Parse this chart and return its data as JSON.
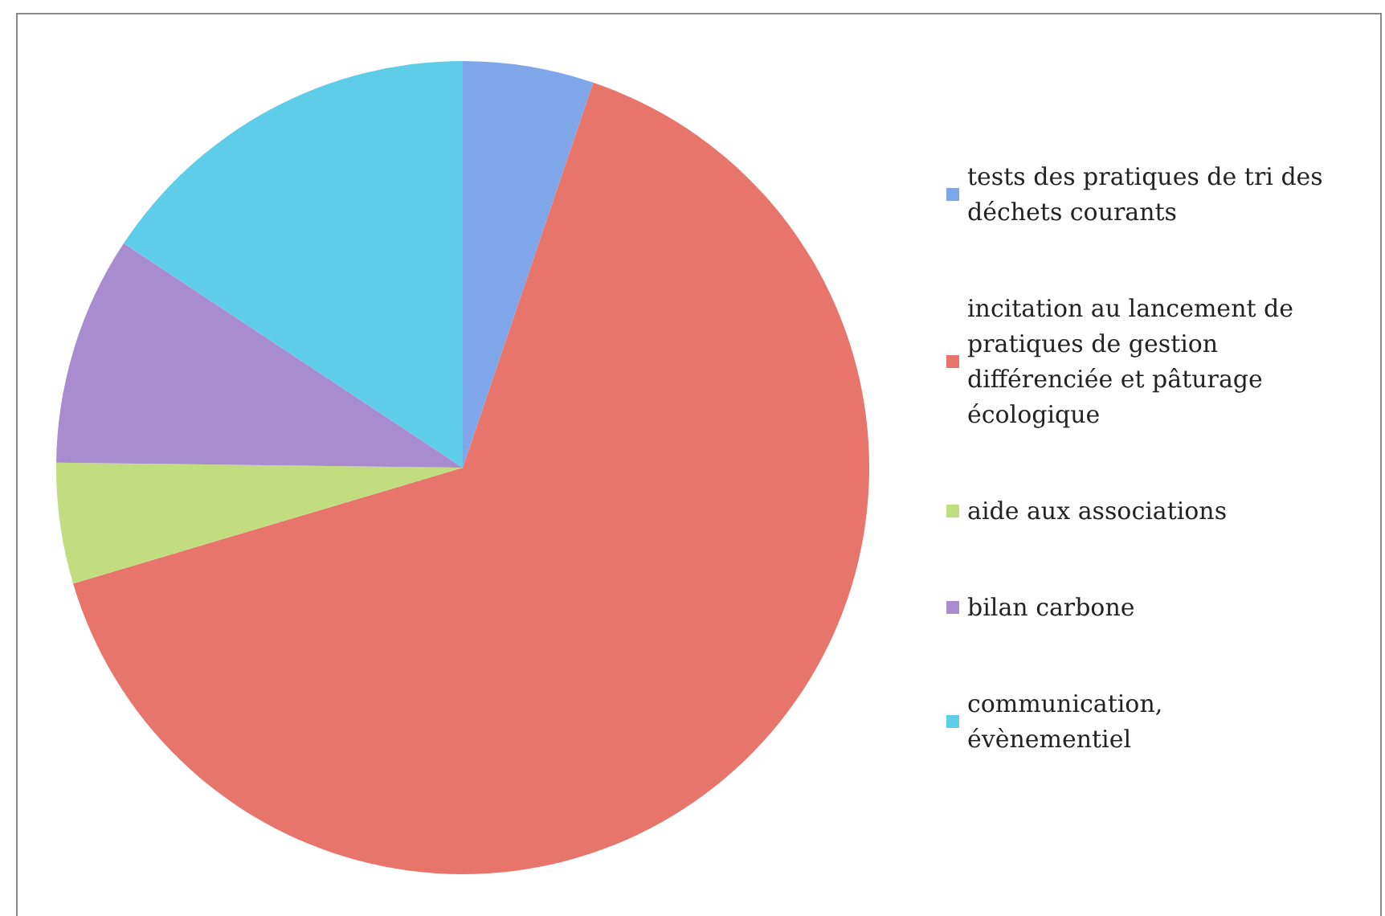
{
  "chart_data": {
    "type": "pie",
    "categories": [
      "tests des pratiques de tri des déchets courants",
      "incitation au lancement de pratiques de gestion différenciée et pâturage écologique",
      "aide aux associations",
      "bilan carbone",
      "communication, évènementiel"
    ],
    "values": [
      5.2,
      65.2,
      4.8,
      9.1,
      15.7
    ],
    "colors": [
      "#7ea6e8",
      "#e8756b",
      "#c2dc80",
      "#a98bd0",
      "#5dcde8"
    ],
    "legend": "right"
  }
}
